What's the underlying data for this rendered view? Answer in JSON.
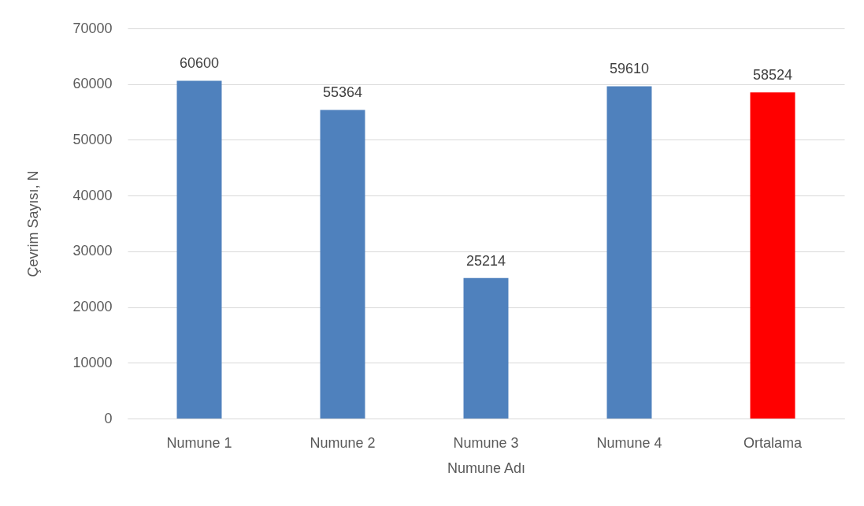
{
  "chart_data": {
    "type": "bar",
    "categories": [
      "Numune 1",
      "Numune 2",
      "Numune 3",
      "Numune 4",
      "Ortalama"
    ],
    "values": [
      60600,
      55364,
      25214,
      59610,
      58524
    ],
    "colors": [
      "#4f81bd",
      "#4f81bd",
      "#4f81bd",
      "#4f81bd",
      "#ff0000"
    ],
    "xlabel": "Numune Adı",
    "ylabel": "Çevrim Sayısı, N",
    "ylim": [
      0,
      70000
    ],
    "yticks": [
      0,
      10000,
      20000,
      30000,
      40000,
      50000,
      60000,
      70000
    ],
    "grid": "y",
    "data_labels": true
  }
}
